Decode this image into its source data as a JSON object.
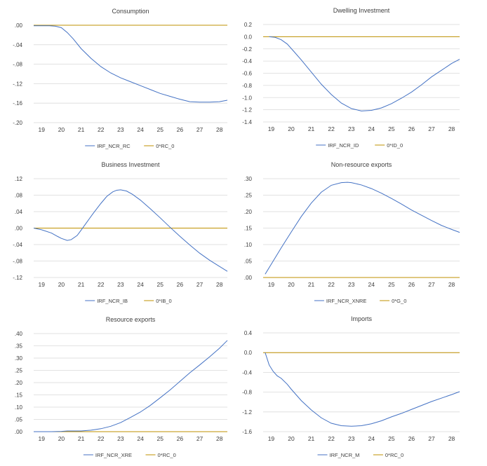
{
  "colors": {
    "irf": "#4472c4",
    "zero": "#bf9000",
    "grid": "#d9d9d9",
    "text": "#404040"
  },
  "chart_data": [
    {
      "type": "line",
      "title": "Consumption",
      "ylim": [
        -0.2,
        0.0
      ],
      "yticks": [
        ".00",
        "-.04",
        "-.08",
        "-.12",
        "-.16",
        "-.20"
      ],
      "ytick_values": [
        0.0,
        -0.04,
        -0.08,
        -0.12,
        -0.16,
        -0.2
      ],
      "xlim": [
        18.6,
        28.4
      ],
      "xticks": [
        "19",
        "20",
        "21",
        "22",
        "23",
        "24",
        "25",
        "26",
        "27",
        "28"
      ],
      "grid": true,
      "legend": "bottom",
      "series": [
        {
          "name": "IRF_NCR_RC",
          "color": "#4472c4",
          "x": [
            18.6,
            19.0,
            19.4,
            19.7,
            20.0,
            20.3,
            20.6,
            21.0,
            21.5,
            22.0,
            22.5,
            23.0,
            23.5,
            24.0,
            24.5,
            25.0,
            25.5,
            26.0,
            26.5,
            27.0,
            27.5,
            28.0,
            28.4
          ],
          "y": [
            -0.001,
            -0.001,
            -0.001,
            -0.002,
            -0.005,
            -0.015,
            -0.028,
            -0.048,
            -0.068,
            -0.085,
            -0.098,
            -0.108,
            -0.116,
            -0.124,
            -0.132,
            -0.14,
            -0.146,
            -0.152,
            -0.157,
            -0.158,
            -0.158,
            -0.157,
            -0.154
          ]
        },
        {
          "name": "0*RC_0",
          "color": "#bf9000",
          "x": [
            18.6,
            28.4
          ],
          "y": [
            0,
            0
          ]
        }
      ]
    },
    {
      "type": "line",
      "title": "Dwelling Investment",
      "ylim": [
        -1.4,
        0.2
      ],
      "yticks": [
        "0.2",
        "0.0",
        "-0.2",
        "-0.4",
        "-0.6",
        "-0.8",
        "-1.0",
        "-1.2",
        "-1.4"
      ],
      "ytick_values": [
        0.2,
        0.0,
        -0.2,
        -0.4,
        -0.6,
        -0.8,
        -1.0,
        -1.2,
        -1.4
      ],
      "xlim": [
        18.6,
        28.4
      ],
      "xticks": [
        "19",
        "20",
        "21",
        "22",
        "23",
        "24",
        "25",
        "26",
        "27",
        "28"
      ],
      "grid": true,
      "legend": "bottom",
      "series": [
        {
          "name": "IRF_NCR_ID",
          "color": "#4472c4",
          "x": [
            18.9,
            19.2,
            19.5,
            19.8,
            20.1,
            20.5,
            21.0,
            21.5,
            22.0,
            22.5,
            23.0,
            23.5,
            24.0,
            24.5,
            25.0,
            25.5,
            26.0,
            26.5,
            27.0,
            27.5,
            28.0,
            28.4
          ],
          "y": [
            0.0,
            -0.01,
            -0.05,
            -0.12,
            -0.23,
            -0.38,
            -0.58,
            -0.78,
            -0.95,
            -1.09,
            -1.18,
            -1.22,
            -1.21,
            -1.17,
            -1.1,
            -1.01,
            -0.91,
            -0.79,
            -0.66,
            -0.55,
            -0.44,
            -0.37
          ]
        },
        {
          "name": "0*ID_0",
          "color": "#bf9000",
          "x": [
            18.6,
            28.4
          ],
          "y": [
            0,
            0
          ]
        }
      ]
    },
    {
      "type": "line",
      "title": "Business Investment",
      "ylim": [
        -0.12,
        0.12
      ],
      "yticks": [
        ".12",
        ".08",
        ".04",
        ".00",
        "-.04",
        "-.08",
        "-.12"
      ],
      "ytick_values": [
        0.12,
        0.08,
        0.04,
        0.0,
        -0.04,
        -0.08,
        -0.12
      ],
      "xlim": [
        18.6,
        28.4
      ],
      "xticks": [
        "19",
        "20",
        "21",
        "22",
        "23",
        "24",
        "25",
        "26",
        "27",
        "28"
      ],
      "grid": true,
      "legend": "bottom",
      "series": [
        {
          "name": "IRF_NCR_IB",
          "color": "#4472c4",
          "x": [
            18.6,
            19.0,
            19.5,
            19.8,
            20.0,
            20.3,
            20.5,
            20.8,
            21.0,
            21.3,
            21.6,
            22.0,
            22.3,
            22.6,
            22.8,
            23.0,
            23.3,
            23.6,
            24.0,
            24.5,
            25.0,
            25.5,
            26.0,
            26.5,
            27.0,
            27.5,
            28.0,
            28.4
          ],
          "y": [
            0.0,
            -0.004,
            -0.012,
            -0.02,
            -0.025,
            -0.03,
            -0.028,
            -0.018,
            -0.005,
            0.015,
            0.035,
            0.06,
            0.077,
            0.088,
            0.092,
            0.093,
            0.09,
            0.082,
            0.068,
            0.047,
            0.025,
            0.002,
            -0.02,
            -0.041,
            -0.061,
            -0.078,
            -0.093,
            -0.105
          ]
        },
        {
          "name": "0*IB_0",
          "color": "#bf9000",
          "x": [
            18.6,
            28.4
          ],
          "y": [
            0,
            0
          ]
        }
      ]
    },
    {
      "type": "line",
      "title": "Non-resource exports",
      "ylim": [
        0.0,
        0.3
      ],
      "yticks": [
        ".30",
        ".25",
        ".20",
        ".15",
        ".10",
        ".05",
        ".00"
      ],
      "ytick_values": [
        0.3,
        0.25,
        0.2,
        0.15,
        0.1,
        0.05,
        0.0
      ],
      "xlim": [
        18.6,
        28.4
      ],
      "xticks": [
        "19",
        "20",
        "21",
        "22",
        "23",
        "24",
        "25",
        "26",
        "27",
        "28"
      ],
      "grid": true,
      "legend": "bottom",
      "series": [
        {
          "name": "IRF_NCR_XNRE",
          "color": "#4472c4",
          "x": [
            18.7,
            19.0,
            19.5,
            20.0,
            20.5,
            21.0,
            21.5,
            22.0,
            22.5,
            22.8,
            23.0,
            23.5,
            24.0,
            24.5,
            25.0,
            25.5,
            26.0,
            26.5,
            27.0,
            27.5,
            28.0,
            28.4
          ],
          "y": [
            0.01,
            0.04,
            0.09,
            0.138,
            0.185,
            0.226,
            0.259,
            0.28,
            0.288,
            0.289,
            0.288,
            0.281,
            0.27,
            0.256,
            0.24,
            0.223,
            0.205,
            0.189,
            0.173,
            0.158,
            0.146,
            0.137
          ]
        },
        {
          "name": "0*G_0",
          "color": "#bf9000",
          "x": [
            18.6,
            28.4
          ],
          "y": [
            0,
            0
          ]
        }
      ]
    },
    {
      "type": "line",
      "title": "Resource exports",
      "ylim": [
        0.0,
        0.4
      ],
      "yticks": [
        ".40",
        ".35",
        ".30",
        ".25",
        ".20",
        ".15",
        ".10",
        ".05",
        ".00"
      ],
      "ytick_values": [
        0.4,
        0.35,
        0.3,
        0.25,
        0.2,
        0.15,
        0.1,
        0.05,
        0.0
      ],
      "xlim": [
        18.6,
        28.4
      ],
      "xticks": [
        "19",
        "20",
        "21",
        "22",
        "23",
        "24",
        "25",
        "26",
        "27",
        "28"
      ],
      "grid": true,
      "legend": "bottom",
      "series": [
        {
          "name": "IRF_NCR_XRE",
          "color": "#4472c4",
          "x": [
            18.6,
            19.5,
            20.0,
            20.3,
            21.0,
            21.5,
            22.0,
            22.5,
            23.0,
            23.5,
            24.0,
            24.5,
            25.0,
            25.5,
            26.0,
            26.5,
            27.0,
            27.5,
            28.0,
            28.4
          ],
          "y": [
            0.0,
            0.0,
            0.001,
            0.003,
            0.003,
            0.006,
            0.012,
            0.022,
            0.037,
            0.058,
            0.08,
            0.107,
            0.138,
            0.17,
            0.205,
            0.24,
            0.272,
            0.305,
            0.34,
            0.372
          ]
        },
        {
          "name": "0*RC_0",
          "color": "#bf9000",
          "x": [
            18.6,
            28.4
          ],
          "y": [
            0,
            0
          ]
        }
      ]
    },
    {
      "type": "line",
      "title": "Imports",
      "ylim": [
        -1.6,
        0.4
      ],
      "yticks": [
        "0.4",
        "0.0",
        "-0.4",
        "-0.8",
        "-1.2",
        "-1.6"
      ],
      "ytick_values": [
        0.4,
        0.0,
        -0.4,
        -0.8,
        -1.2,
        -1.6
      ],
      "xlim": [
        18.6,
        28.4
      ],
      "xticks": [
        "19",
        "20",
        "21",
        "22",
        "23",
        "24",
        "25",
        "26",
        "27",
        "28"
      ],
      "grid": true,
      "legend": "bottom",
      "series": [
        {
          "name": "IRF_NCR_M",
          "color": "#4472c4",
          "x": [
            18.7,
            18.9,
            19.1,
            19.3,
            19.5,
            19.8,
            20.0,
            20.5,
            21.0,
            21.5,
            22.0,
            22.5,
            23.0,
            23.5,
            24.0,
            24.5,
            25.0,
            25.5,
            26.0,
            26.5,
            27.0,
            27.5,
            28.0,
            28.4
          ],
          "y": [
            0.0,
            -0.25,
            -0.38,
            -0.47,
            -0.52,
            -0.64,
            -0.74,
            -0.97,
            -1.16,
            -1.32,
            -1.43,
            -1.48,
            -1.49,
            -1.48,
            -1.44,
            -1.38,
            -1.3,
            -1.23,
            -1.15,
            -1.07,
            -0.99,
            -0.92,
            -0.85,
            -0.79
          ]
        },
        {
          "name": "0*RC_0",
          "color": "#bf9000",
          "x": [
            18.6,
            28.4
          ],
          "y": [
            0,
            0
          ]
        }
      ]
    }
  ]
}
